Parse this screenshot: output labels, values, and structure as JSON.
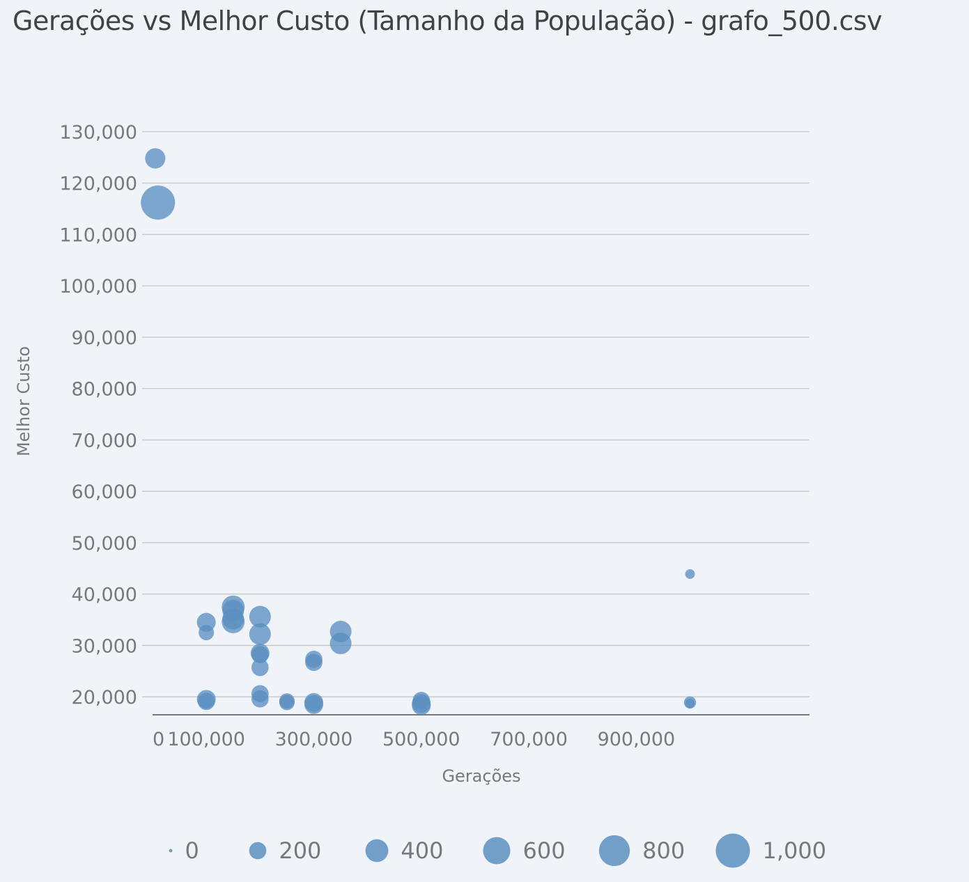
{
  "chart_data": {
    "type": "scatter",
    "title": "Gerações vs Melhor Custo (Tamanho da População) - grafo_500.csv",
    "xlabel": "Gerações",
    "ylabel": "Melhor Custo",
    "xlim": [
      0,
      1100000
    ],
    "ylim": [
      16500,
      130000
    ],
    "x_ticks": [
      0,
      100000,
      300000,
      500000,
      700000,
      900000
    ],
    "x_tick_labels": [
      "0",
      "100,000",
      "300,000",
      "500,000",
      "700,000",
      "900,000"
    ],
    "y_ticks": [
      20000,
      30000,
      40000,
      50000,
      60000,
      70000,
      80000,
      90000,
      100000,
      110000,
      120000,
      130000
    ],
    "y_tick_labels": [
      "20,000",
      "30,000",
      "40,000",
      "50,000",
      "60,000",
      "70,000",
      "80,000",
      "90,000",
      "100,000",
      "110,000",
      "120,000",
      "130,000"
    ],
    "grid": true,
    "size_legend_title": "",
    "size_legend": [
      {
        "label": "0",
        "value": 0
      },
      {
        "label": "200",
        "value": 200
      },
      {
        "label": "400",
        "value": 400
      },
      {
        "label": "600",
        "value": 600
      },
      {
        "label": "800",
        "value": 800
      },
      {
        "label": "1,000",
        "value": 1000
      }
    ],
    "legend_position": "bottom",
    "point_color": "#5b8fc0",
    "points": [
      {
        "x": 5000,
        "y": 124800,
        "size": 300
      },
      {
        "x": 10000,
        "y": 116200,
        "size": 1000
      },
      {
        "x": 100000,
        "y": 34500,
        "size": 250
      },
      {
        "x": 100000,
        "y": 32500,
        "size": 150
      },
      {
        "x": 100000,
        "y": 19500,
        "size": 250
      },
      {
        "x": 100000,
        "y": 19100,
        "size": 200
      },
      {
        "x": 150000,
        "y": 37500,
        "size": 400
      },
      {
        "x": 150000,
        "y": 36800,
        "size": 350
      },
      {
        "x": 150000,
        "y": 35200,
        "size": 350
      },
      {
        "x": 150000,
        "y": 34600,
        "size": 400
      },
      {
        "x": 200000,
        "y": 35600,
        "size": 350
      },
      {
        "x": 200000,
        "y": 32200,
        "size": 350
      },
      {
        "x": 200000,
        "y": 28500,
        "size": 250
      },
      {
        "x": 200000,
        "y": 28200,
        "size": 200
      },
      {
        "x": 200000,
        "y": 25700,
        "size": 200
      },
      {
        "x": 200000,
        "y": 20600,
        "size": 200
      },
      {
        "x": 200000,
        "y": 19600,
        "size": 200
      },
      {
        "x": 250000,
        "y": 19200,
        "size": 150
      },
      {
        "x": 250000,
        "y": 18900,
        "size": 150
      },
      {
        "x": 300000,
        "y": 27300,
        "size": 200
      },
      {
        "x": 300000,
        "y": 26700,
        "size": 200
      },
      {
        "x": 300000,
        "y": 18900,
        "size": 250
      },
      {
        "x": 300000,
        "y": 18500,
        "size": 250
      },
      {
        "x": 350000,
        "y": 32700,
        "size": 350
      },
      {
        "x": 350000,
        "y": 30400,
        "size": 350
      },
      {
        "x": 500000,
        "y": 19300,
        "size": 200
      },
      {
        "x": 500000,
        "y": 18700,
        "size": 250
      },
      {
        "x": 500000,
        "y": 18300,
        "size": 250
      },
      {
        "x": 1000000,
        "y": 43900,
        "size": 40
      },
      {
        "x": 1000000,
        "y": 18900,
        "size": 80
      },
      {
        "x": 1000000,
        "y": 18700,
        "size": 40
      }
    ]
  }
}
